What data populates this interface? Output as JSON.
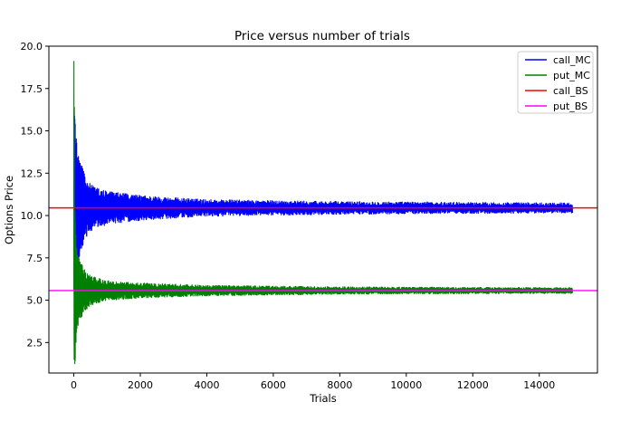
{
  "chart_data": {
    "type": "line",
    "title": "Price versus number of trials",
    "xlabel": "Trials",
    "ylabel": "Options Price",
    "xlim": [
      -750,
      15750
    ],
    "ylim": [
      0.7,
      20.0
    ],
    "xticks": [
      0,
      2000,
      4000,
      6000,
      8000,
      10000,
      12000,
      14000
    ],
    "yticks": [
      2.5,
      5.0,
      7.5,
      10.0,
      12.5,
      15.0,
      17.5,
      20.0
    ],
    "legend_position": "top-right",
    "grid": false,
    "series": [
      {
        "name": "call_MC",
        "color": "#0000ff",
        "kind": "noisy-convergence",
        "x_range": [
          1,
          15000
        ],
        "converges_to": 10.45,
        "peak_early": 16.1,
        "min_early": 7.6,
        "envelope": [
          [
            1,
            10.0
          ],
          [
            100,
            3.8
          ],
          [
            500,
            1.4
          ],
          [
            1000,
            1.0
          ],
          [
            2000,
            0.75
          ],
          [
            4000,
            0.5
          ],
          [
            8000,
            0.38
          ],
          [
            15000,
            0.3
          ]
        ]
      },
      {
        "name": "put_MC",
        "color": "#008000",
        "kind": "noisy-convergence",
        "x_range": [
          1,
          15000
        ],
        "converges_to": 5.57,
        "peak_early": 19.1,
        "min_early": 1.5,
        "envelope": [
          [
            1,
            12.0
          ],
          [
            100,
            2.3
          ],
          [
            500,
            0.9
          ],
          [
            1000,
            0.6
          ],
          [
            2000,
            0.45
          ],
          [
            4000,
            0.32
          ],
          [
            8000,
            0.22
          ],
          [
            15000,
            0.17
          ]
        ]
      },
      {
        "name": "call_BS",
        "color": "#ff0000",
        "kind": "hline",
        "value": 10.45
      },
      {
        "name": "put_BS",
        "color": "#ff00ff",
        "kind": "hline",
        "value": 5.57
      }
    ]
  }
}
